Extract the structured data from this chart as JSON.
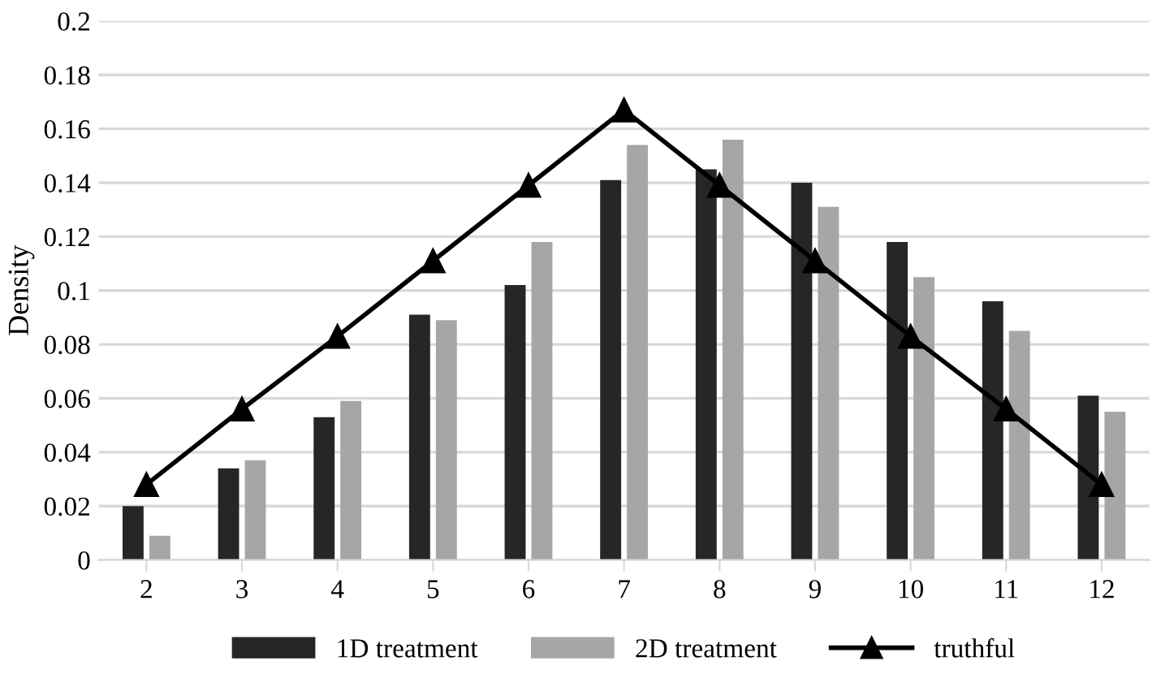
{
  "chart_data": {
    "type": "bar",
    "ylabel": "Density",
    "categories": [
      "2",
      "3",
      "4",
      "5",
      "6",
      "7",
      "8",
      "9",
      "10",
      "11",
      "12"
    ],
    "series": [
      {
        "name": "1D treatment",
        "color": "#262626",
        "values": [
          0.02,
          0.034,
          0.053,
          0.091,
          0.102,
          0.141,
          0.145,
          0.14,
          0.118,
          0.096,
          0.061
        ]
      },
      {
        "name": "2D treatment",
        "color": "#a6a6a6",
        "values": [
          0.009,
          0.037,
          0.059,
          0.089,
          0.118,
          0.154,
          0.156,
          0.131,
          0.105,
          0.085,
          0.055
        ]
      },
      {
        "name": "truthful",
        "type": "line",
        "color": "#000000",
        "marker": "triangle",
        "values": [
          0.028,
          0.056,
          0.083,
          0.111,
          0.139,
          0.167,
          0.139,
          0.111,
          0.083,
          0.056,
          0.028
        ]
      }
    ],
    "ylim": [
      0,
      0.2
    ],
    "yticks": [
      {
        "value": 0,
        "label": "0"
      },
      0.02,
      0.04,
      0.06,
      0.08,
      {
        "value": 0.1,
        "label": "0.1"
      },
      0.12,
      0.14,
      0.16,
      0.18,
      {
        "value": 0.2,
        "label": "0.2"
      }
    ],
    "grid": "y",
    "legend": "bottom"
  }
}
